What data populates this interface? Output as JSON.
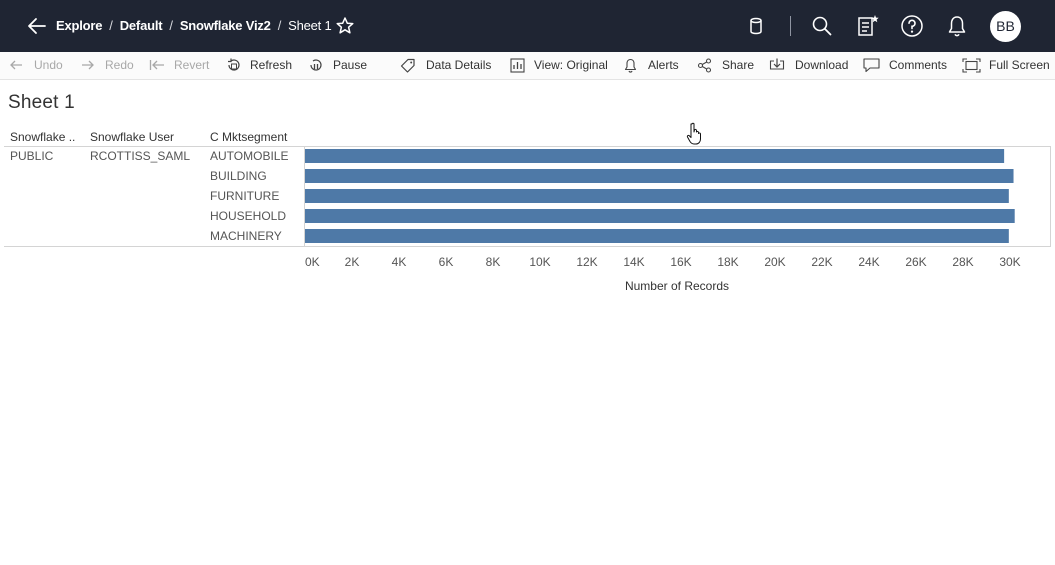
{
  "header": {
    "breadcrumbs": [
      "Explore",
      "Default",
      "Snowflake Viz2",
      "Sheet 1"
    ],
    "separator": "/",
    "avatar_initials": "BB",
    "icons": [
      "back-arrow-icon",
      "star-icon",
      "datasource-icon",
      "search-icon",
      "recents-icon",
      "help-icon",
      "bell-icon"
    ]
  },
  "toolbar": {
    "undo": "Undo",
    "redo": "Redo",
    "revert": "Revert",
    "refresh": "Refresh",
    "pause": "Pause",
    "data_details": "Data Details",
    "view": "View: Original",
    "alerts": "Alerts",
    "share": "Share",
    "download": "Download",
    "comments": "Comments",
    "full_screen": "Full Screen"
  },
  "sheet": {
    "title": "Sheet 1",
    "col_headers": [
      "Snowflake ..",
      "Snowflake User",
      "C Mktsegment"
    ],
    "schema_value": "PUBLIC",
    "user_value": "RCOTTISS_SAML"
  },
  "colors": {
    "bar": "#4e79a7",
    "topbar": "#1f2533"
  },
  "chart_data": {
    "type": "bar",
    "orientation": "horizontal",
    "categories": [
      "AUTOMOBILE",
      "BUILDING",
      "FURNITURE",
      "HOUSEHOLD",
      "MACHINERY"
    ],
    "values": [
      29750,
      30150,
      29950,
      30200,
      29950
    ],
    "xlabel": "Number of Records",
    "xlim": [
      0,
      31000
    ],
    "tick_values": [
      0,
      2000,
      4000,
      6000,
      8000,
      10000,
      12000,
      14000,
      16000,
      18000,
      20000,
      22000,
      24000,
      26000,
      28000,
      30000
    ],
    "tick_labels": [
      "0K",
      "2K",
      "4K",
      "6K",
      "8K",
      "10K",
      "12K",
      "14K",
      "16K",
      "18K",
      "20K",
      "22K",
      "24K",
      "26K",
      "28K",
      "30K"
    ]
  }
}
